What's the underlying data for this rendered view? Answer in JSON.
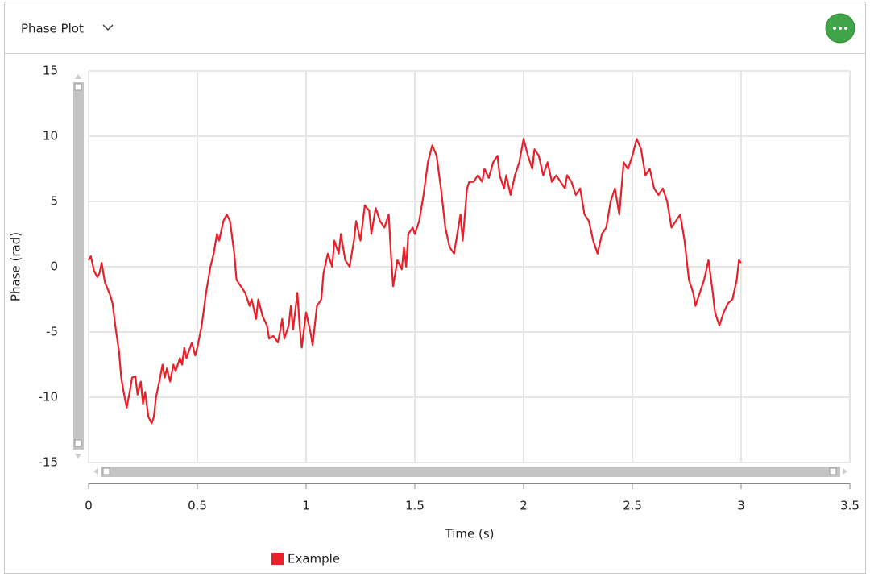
{
  "header": {
    "title": "Phase Plot"
  },
  "chart_data": {
    "type": "line",
    "x_label": "Time (s)",
    "y_label": "Phase (rad)",
    "x": [
      0,
      0.01,
      0.025,
      0.04,
      0.05,
      0.06,
      0.075,
      0.09,
      0.1,
      0.11,
      0.125,
      0.14,
      0.15,
      0.16,
      0.175,
      0.19,
      0.2,
      0.215,
      0.225,
      0.24,
      0.25,
      0.26,
      0.275,
      0.29,
      0.3,
      0.31,
      0.325,
      0.34,
      0.35,
      0.36,
      0.375,
      0.39,
      0.4,
      0.42,
      0.43,
      0.44,
      0.45,
      0.46,
      0.475,
      0.49,
      0.5,
      0.52,
      0.54,
      0.56,
      0.575,
      0.59,
      0.6,
      0.62,
      0.635,
      0.65,
      0.67,
      0.68,
      0.7,
      0.72,
      0.74,
      0.75,
      0.77,
      0.78,
      0.8,
      0.82,
      0.83,
      0.85,
      0.87,
      0.88,
      0.89,
      0.9,
      0.92,
      0.93,
      0.94,
      0.96,
      0.97,
      0.98,
      1.0,
      1.02,
      1.03,
      1.05,
      1.07,
      1.08,
      1.1,
      1.12,
      1.13,
      1.15,
      1.16,
      1.18,
      1.2,
      1.22,
      1.23,
      1.25,
      1.27,
      1.29,
      1.3,
      1.32,
      1.34,
      1.36,
      1.38,
      1.39,
      1.4,
      1.42,
      1.44,
      1.45,
      1.46,
      1.47,
      1.49,
      1.5,
      1.52,
      1.54,
      1.56,
      1.58,
      1.6,
      1.62,
      1.64,
      1.66,
      1.68,
      1.7,
      1.71,
      1.72,
      1.74,
      1.75,
      1.77,
      1.79,
      1.81,
      1.82,
      1.84,
      1.86,
      1.88,
      1.89,
      1.91,
      1.92,
      1.94,
      1.96,
      1.98,
      2.0,
      2.02,
      2.04,
      2.05,
      2.07,
      2.09,
      2.11,
      2.13,
      2.15,
      2.17,
      2.19,
      2.2,
      2.22,
      2.24,
      2.26,
      2.28,
      2.3,
      2.32,
      2.34,
      2.36,
      2.38,
      2.4,
      2.42,
      2.44,
      2.46,
      2.48,
      2.5,
      2.52,
      2.54,
      2.56,
      2.58,
      2.6,
      2.62,
      2.64,
      2.66,
      2.68,
      2.7,
      2.72,
      2.74,
      2.76,
      2.78,
      2.79,
      2.81,
      2.83,
      2.85,
      2.87,
      2.88,
      2.9,
      2.92,
      2.94,
      2.96,
      2.98,
      2.99,
      3.0
    ],
    "series": [
      {
        "name": "Example",
        "color": "#e8202a",
        "values": [
          0.5,
          0.8,
          -0.3,
          -0.8,
          -0.5,
          0.3,
          -1.2,
          -1.8,
          -2.2,
          -2.8,
          -4.8,
          -6.5,
          -8.5,
          -9.5,
          -10.8,
          -9.5,
          -8.5,
          -8.4,
          -9.8,
          -8.8,
          -10.5,
          -9.6,
          -11.5,
          -12,
          -11.5,
          -10,
          -8.8,
          -7.5,
          -8.5,
          -7.8,
          -8.8,
          -7.5,
          -8,
          -7,
          -7.5,
          -6.2,
          -7,
          -6.5,
          -5.8,
          -6.8,
          -6.2,
          -4.5,
          -2,
          0,
          1,
          2.5,
          2,
          3.5,
          4,
          3.5,
          1,
          -1,
          -1.5,
          -2,
          -3,
          -2.5,
          -4,
          -2.5,
          -3.8,
          -4.5,
          -5.5,
          -5.3,
          -5.8,
          -5,
          -4,
          -5.5,
          -4.5,
          -3,
          -4.8,
          -2,
          -4.5,
          -6.2,
          -3.5,
          -5,
          -6,
          -3,
          -2.5,
          -0.5,
          1,
          0,
          2,
          1,
          2.5,
          0.5,
          0,
          2,
          3.5,
          2,
          4.7,
          4.3,
          2.5,
          4.5,
          3.5,
          3,
          4,
          1,
          -1.5,
          0.5,
          -0.2,
          1.5,
          0,
          2.5,
          3,
          2.5,
          3.5,
          5.5,
          8,
          9.3,
          8.5,
          6,
          3,
          1.5,
          1,
          3,
          4,
          2,
          6,
          6.5,
          6.5,
          7,
          6.5,
          7.5,
          6.8,
          8,
          8.5,
          7,
          6,
          7,
          5.5,
          7,
          8,
          9.8,
          8.5,
          7.5,
          9,
          8.5,
          7,
          8,
          6.5,
          7,
          6.5,
          6,
          7,
          6.5,
          5.5,
          6,
          4,
          3.5,
          2,
          1,
          2.5,
          3,
          5,
          6,
          4,
          8,
          7.5,
          8.5,
          9.8,
          9,
          7,
          7.5,
          6,
          5.5,
          6,
          5,
          3,
          3.5,
          4,
          2,
          -1,
          -2,
          -3,
          -2,
          -1,
          0.5,
          -2,
          -3.5,
          -4.5,
          -3.5,
          -2.8,
          -2.5,
          -1,
          0.5,
          0.3
        ]
      }
    ],
    "xlim": [
      0,
      3.5
    ],
    "xticks": [
      0,
      0.5,
      1,
      1.5,
      2,
      2.5,
      3,
      3.5
    ],
    "ylim": [
      -15,
      15
    ],
    "yticks": [
      -15,
      -10,
      -5,
      0,
      5,
      10,
      15
    ],
    "grid": true
  }
}
